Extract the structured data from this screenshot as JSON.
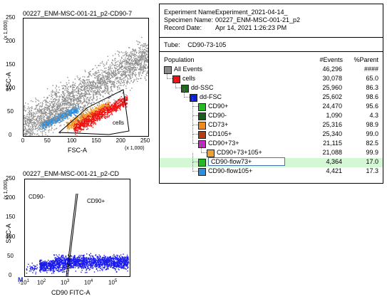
{
  "plot1": {
    "title": "00227_ENM-MSC-001-21_p2-CD90-7",
    "ylabel": "SSC-A",
    "xlabel": "FSC-A",
    "y_mult": "(x 1,000)",
    "x_mult": "(x 1,000)",
    "yticks": [
      "250",
      "200",
      "150",
      "100",
      "50",
      "0"
    ],
    "xticks": [
      "0",
      "50",
      "100",
      "150",
      "200",
      "250"
    ],
    "gate_label": "cells"
  },
  "plot2": {
    "title": "00227_ENM-MSC-001-21_p2-CD",
    "ylabel": "SSC-A",
    "xlabel": "CD90 FITC-A",
    "y_mult": "(x 1,000)",
    "yticks": [
      "250",
      "200",
      "150",
      "100",
      "50",
      "0"
    ],
    "xtick_base": "10",
    "xtick_exps": [
      "2",
      "3",
      "4",
      "5"
    ],
    "xtick_neg": "-10",
    "xtick_neg_exp": "1",
    "m_label": "M",
    "gate_left": "CD90-",
    "gate_right": "CD90+"
  },
  "hierarchy": {
    "header": [
      {
        "key": "Experiment Name:",
        "value": "Experiment_2021-04-14_"
      },
      {
        "key": "Specimen Name:",
        "value": "00227_ENM-MSC-001-21_p2"
      },
      {
        "key": "Record Date:",
        "value": "Apr 14, 2021 1:26:23 PM"
      }
    ],
    "tube_label": "Tube:",
    "tube_value": "CD90-73-105",
    "col_population": "Population",
    "col_events": "#Events",
    "col_parent": "%Parent",
    "rows": [
      {
        "name": "All Events",
        "events": "46,296",
        "parent": "####",
        "color": "#8c8c8c"
      },
      {
        "name": "cells",
        "events": "30,078",
        "parent": "65.0",
        "color": "#ee1111"
      },
      {
        "name": "dd-SSC",
        "events": "25,960",
        "parent": "86.3",
        "color": "#1a6b1a"
      },
      {
        "name": "dd-FSC",
        "events": "25,602",
        "parent": "98.6",
        "color": "#0a1fd6"
      },
      {
        "name": "CD90+",
        "events": "24,470",
        "parent": "95.6",
        "color": "#22bb22"
      },
      {
        "name": "CD90-",
        "events": "1,090",
        "parent": "4.3",
        "color": "#1b5e1b"
      },
      {
        "name": "CD73+",
        "events": "25,316",
        "parent": "98.9",
        "color": "#f08a1c"
      },
      {
        "name": "CD105+",
        "events": "25,340",
        "parent": "99.0",
        "color": "#b53a10"
      },
      {
        "name": "CD90+73+",
        "events": "21,115",
        "parent": "82.5",
        "color": "#cc22cc"
      },
      {
        "name": "CD90+73+105+",
        "events": "21,088",
        "parent": "99.9",
        "color": "#f0a030"
      },
      {
        "name": "CD90-flow73+",
        "events": "4,364",
        "parent": "17.0",
        "color": "#22bb22"
      },
      {
        "name": "CD90-flow105+",
        "events": "4,421",
        "parent": "17.3",
        "color": "#2b8fe0"
      }
    ]
  }
}
